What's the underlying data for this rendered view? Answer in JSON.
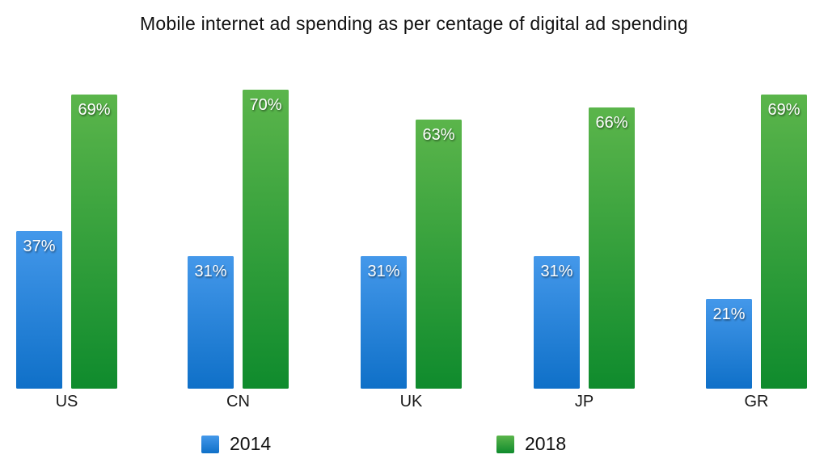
{
  "chart_data": {
    "type": "bar",
    "title": "Mobile internet ad spending as per centage of digital ad spending",
    "categories": [
      "US",
      "CN",
      "UK",
      "JP",
      "GR"
    ],
    "series": [
      {
        "name": "2014",
        "values": [
          37,
          31,
          31,
          31,
          21
        ],
        "color_top": "#4498ea",
        "color_bottom": "#0f70c8"
      },
      {
        "name": "2018",
        "values": [
          69,
          70,
          63,
          66,
          69
        ],
        "color_top": "#5bb54b",
        "color_bottom": "#0f8b2d"
      }
    ],
    "value_suffix": "%",
    "value_labels": "inside-top",
    "value_label_color": "#ffffff",
    "xlabel": "",
    "ylabel": "",
    "grid": false,
    "axes_visible": false,
    "legend_position": "bottom",
    "background_color": "#ffffff"
  }
}
